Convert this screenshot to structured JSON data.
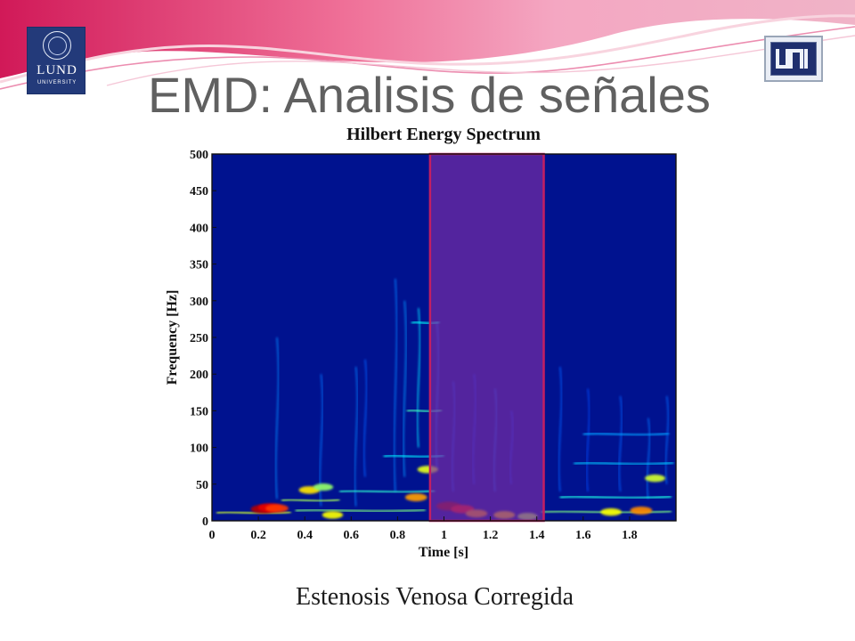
{
  "slide": {
    "title": "EMD: Analisis de señales",
    "caption": "Estenosis Venosa Corregida",
    "logos": {
      "left": {
        "name": "LUND",
        "subtitle": "UNIVERSITY"
      },
      "right": {
        "name": "UNI"
      }
    }
  },
  "chart_data": {
    "type": "heatmap",
    "title": "Hilbert Energy Spectrum",
    "xlabel": "Time [s]",
    "ylabel": "Frequency [Hz]",
    "xlim": [
      0,
      2
    ],
    "ylim": [
      0,
      500
    ],
    "x_ticks": [
      0,
      0.2,
      0.4,
      0.6,
      0.8,
      1,
      1.2,
      1.4,
      1.6,
      1.8
    ],
    "x_tick_labels": [
      "0",
      "0.2",
      "0.4",
      "0.6",
      "0.8",
      "1",
      "1.2",
      "1.4",
      "1.6",
      "1.8"
    ],
    "y_ticks": [
      0,
      50,
      100,
      150,
      200,
      250,
      300,
      350,
      400,
      450,
      500
    ],
    "y_tick_labels": [
      "0",
      "50",
      "100",
      "150",
      "200",
      "250",
      "300",
      "350",
      "400",
      "450",
      "500"
    ],
    "colormap": "jet",
    "background_color": "#00128f",
    "highlight": {
      "x_range": [
        0.94,
        1.43
      ],
      "color": "#7a2ea5"
    },
    "series": [
      {
        "type": "hotspots",
        "values": [
          {
            "x": 0.22,
            "y": 16,
            "intensity": 0.95
          },
          {
            "x": 0.25,
            "y": 18,
            "intensity": 0.9
          },
          {
            "x": 0.28,
            "y": 17,
            "intensity": 0.82
          },
          {
            "x": 0.42,
            "y": 42,
            "intensity": 0.65
          },
          {
            "x": 0.48,
            "y": 46,
            "intensity": 0.52
          },
          {
            "x": 0.52,
            "y": 8,
            "intensity": 0.62
          },
          {
            "x": 0.88,
            "y": 32,
            "intensity": 0.72
          },
          {
            "x": 0.93,
            "y": 70,
            "intensity": 0.6
          },
          {
            "x": 1.02,
            "y": 20,
            "intensity": 0.98
          },
          {
            "x": 1.08,
            "y": 16,
            "intensity": 0.86
          },
          {
            "x": 1.14,
            "y": 10,
            "intensity": 0.72
          },
          {
            "x": 1.26,
            "y": 8,
            "intensity": 0.68
          },
          {
            "x": 1.36,
            "y": 6,
            "intensity": 0.55
          },
          {
            "x": 1.72,
            "y": 12,
            "intensity": 0.62
          },
          {
            "x": 1.85,
            "y": 14,
            "intensity": 0.74
          },
          {
            "x": 1.91,
            "y": 58,
            "intensity": 0.58
          }
        ]
      },
      {
        "type": "ridges",
        "values": [
          {
            "x0": 0.02,
            "x1": 0.34,
            "y": 11,
            "intensity": 0.58
          },
          {
            "x0": 0.3,
            "x1": 0.55,
            "y": 28,
            "intensity": 0.54
          },
          {
            "x0": 0.36,
            "x1": 0.92,
            "y": 14,
            "intensity": 0.5
          },
          {
            "x0": 0.55,
            "x1": 0.96,
            "y": 40,
            "intensity": 0.42
          },
          {
            "x0": 0.74,
            "x1": 1.0,
            "y": 88,
            "intensity": 0.36
          },
          {
            "x0": 0.84,
            "x1": 0.99,
            "y": 150,
            "intensity": 0.44
          },
          {
            "x0": 0.86,
            "x1": 0.98,
            "y": 270,
            "intensity": 0.38
          },
          {
            "x0": 1.42,
            "x1": 1.98,
            "y": 12,
            "intensity": 0.5
          },
          {
            "x0": 1.5,
            "x1": 1.98,
            "y": 32,
            "intensity": 0.4
          },
          {
            "x0": 1.56,
            "x1": 1.99,
            "y": 78,
            "intensity": 0.32
          },
          {
            "x0": 1.6,
            "x1": 1.97,
            "y": 118,
            "intensity": 0.28
          }
        ]
      },
      {
        "type": "vertical_traces",
        "values": [
          {
            "x": 0.28,
            "y0": 30,
            "y1": 250,
            "intensity": 0.26
          },
          {
            "x": 0.47,
            "y0": 20,
            "y1": 200,
            "intensity": 0.24
          },
          {
            "x": 0.62,
            "y0": 20,
            "y1": 210,
            "intensity": 0.25
          },
          {
            "x": 0.66,
            "y0": 60,
            "y1": 220,
            "intensity": 0.22
          },
          {
            "x": 0.79,
            "y0": 40,
            "y1": 330,
            "intensity": 0.25
          },
          {
            "x": 0.83,
            "y0": 60,
            "y1": 300,
            "intensity": 0.27
          },
          {
            "x": 0.89,
            "y0": 100,
            "y1": 290,
            "intensity": 0.35
          },
          {
            "x": 0.97,
            "y0": 70,
            "y1": 270,
            "intensity": 0.22
          },
          {
            "x": 1.04,
            "y0": 40,
            "y1": 190,
            "intensity": 0.2
          },
          {
            "x": 1.13,
            "y0": 50,
            "y1": 200,
            "intensity": 0.18
          },
          {
            "x": 1.22,
            "y0": 40,
            "y1": 180,
            "intensity": 0.22
          },
          {
            "x": 1.29,
            "y0": 50,
            "y1": 150,
            "intensity": 0.18
          },
          {
            "x": 1.5,
            "y0": 40,
            "y1": 210,
            "intensity": 0.22
          },
          {
            "x": 1.62,
            "y0": 40,
            "y1": 180,
            "intensity": 0.2
          },
          {
            "x": 1.76,
            "y0": 40,
            "y1": 170,
            "intensity": 0.22
          },
          {
            "x": 1.88,
            "y0": 30,
            "y1": 140,
            "intensity": 0.24
          },
          {
            "x": 1.96,
            "y0": 50,
            "y1": 170,
            "intensity": 0.23
          }
        ]
      }
    ]
  }
}
